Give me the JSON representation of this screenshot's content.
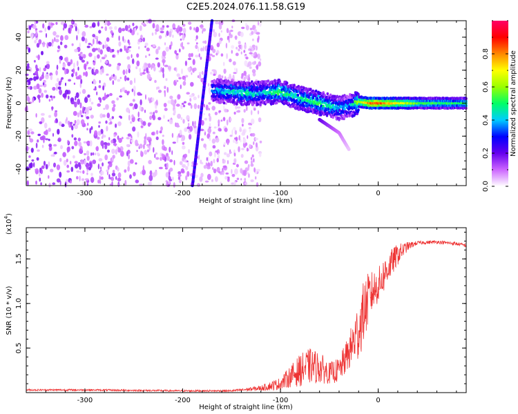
{
  "title": "C2E5.2024.076.11.58.G19",
  "chart_data": [
    {
      "type": "heatmap",
      "xlabel": "Height of straight line (km)",
      "ylabel": "Frequency (Hz)",
      "xlim": [
        -360,
        90
      ],
      "ylim": [
        -50,
        50
      ],
      "xticks": [
        -300,
        -200,
        -100,
        0
      ],
      "yticks": [
        -40,
        -20,
        0,
        20,
        40
      ],
      "colorbar": {
        "label": "Normalized spectral amplitude",
        "range": [
          0,
          1
        ],
        "ticks": [
          0.0,
          0.2,
          0.4,
          0.6,
          0.8
        ],
        "colors": [
          "#ffffff",
          "#cc66ff",
          "#6600ee",
          "#0000ff",
          "#00ccff",
          "#00ff66",
          "#99ff00",
          "#ffff00",
          "#ff8800",
          "#ff0000",
          "#ff0066"
        ]
      },
      "features": {
        "noise_region_x": [
          -360,
          -120
        ],
        "sloped_line": {
          "x": [
            -190,
            -170
          ],
          "y": [
            -50,
            50
          ],
          "amplitude": 0.2
        },
        "main_trace": {
          "x": [
            -170,
            -140,
            -120,
            -100,
            -80,
            -60,
            -40,
            -30,
            -20,
            -10,
            0,
            20,
            40,
            60,
            90
          ],
          "y": [
            8,
            6,
            6,
            7,
            3,
            0,
            -3,
            -2,
            1,
            0,
            0,
            0,
            0,
            0,
            0
          ],
          "amplitude": [
            0.35,
            0.45,
            0.4,
            0.5,
            0.45,
            0.5,
            0.4,
            0.35,
            0.6,
            0.8,
            0.85,
            0.7,
            0.55,
            0.5,
            0.5
          ]
        },
        "secondary_trace": {
          "x": [
            -60,
            -50,
            -40,
            -30
          ],
          "y": [
            -10,
            -14,
            -18,
            -28
          ],
          "amplitude": 0.2
        }
      }
    },
    {
      "type": "line",
      "xlabel": "Height of straight line (km)",
      "ylabel": "SNR (10 * v/v)",
      "scale_label": "(x10",
      "scale_exp": "4",
      "scale_close": ")",
      "xlim": [
        -360,
        90
      ],
      "ylim": [
        0,
        1.85
      ],
      "xticks": [
        -300,
        -200,
        -100,
        0
      ],
      "yticks": [
        0.5,
        1.0,
        1.5
      ],
      "yticklabels": [
        "0.5",
        "1.0",
        "1.5"
      ],
      "series": [
        {
          "color": "#ee3333",
          "x": [
            -360,
            -300,
            -200,
            -150,
            -120,
            -100,
            -90,
            -80,
            -70,
            -60,
            -50,
            -40,
            -30,
            -20,
            -15,
            -10,
            -5,
            0,
            5,
            10,
            20,
            30,
            40,
            60,
            80,
            90
          ],
          "y": [
            0.03,
            0.03,
            0.02,
            0.02,
            0.05,
            0.1,
            0.18,
            0.25,
            0.3,
            0.28,
            0.22,
            0.25,
            0.45,
            0.7,
            0.9,
            1.05,
            1.15,
            1.2,
            1.3,
            1.4,
            1.55,
            1.64,
            1.68,
            1.69,
            1.67,
            1.65
          ],
          "noise": [
            0.01,
            0.01,
            0.01,
            0.01,
            0.03,
            0.07,
            0.12,
            0.18,
            0.2,
            0.18,
            0.12,
            0.14,
            0.2,
            0.35,
            0.35,
            0.3,
            0.22,
            0.2,
            0.2,
            0.18,
            0.12,
            0.05,
            0.02,
            0.02,
            0.02,
            0.02
          ]
        }
      ]
    }
  ]
}
